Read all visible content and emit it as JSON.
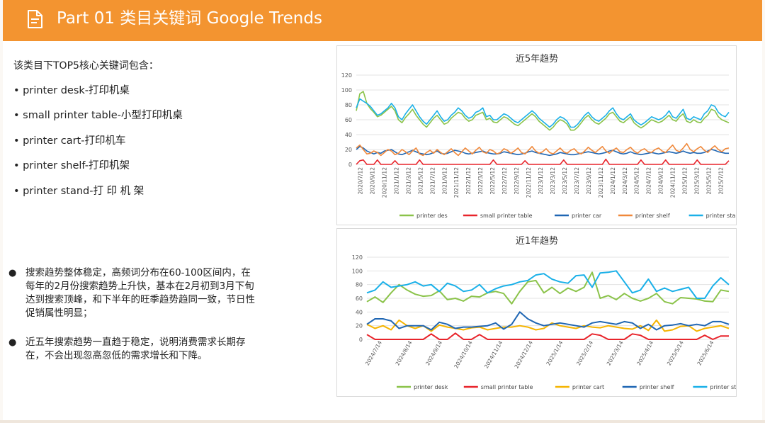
{
  "header": {
    "title": "Part 01 类目关键词 Google Trends",
    "icon": "document-icon",
    "color": "#f39430"
  },
  "left": {
    "intro": "该类目下TOP5核心关键词包含：",
    "keywords": [
      "• printer desk-打印机桌",
      "• small printer table-小型打印机桌",
      "• printer cart-打印机车",
      "• printer shelf-打印机架",
      "• printer stand-打 印 机 架"
    ],
    "notes": [
      "搜索趋势整体稳定，高频词分布在60-100区间内，在每年的2月份搜索趋势上升快，基本在2月初到3月下旬达到搜索顶峰，和下半年的旺季趋势趋同一致，节日性促销属性明显；",
      "近五年搜索趋势一直趋于稳定，说明消费需求长期存在，不会出现忽高忽低的需求增长和下降。"
    ]
  },
  "chart_data": [
    {
      "type": "line",
      "title": "近5年趋势",
      "xlabel": "",
      "ylabel": "",
      "ylim": [
        0,
        120
      ],
      "yticks": [
        0,
        20,
        40,
        60,
        80,
        100,
        120
      ],
      "grid": true,
      "legend_position": "bottom",
      "x_tick_labels": [
        "2020/7/12",
        "2020/9/12",
        "2020/11/12",
        "2021/1/12",
        "2021/3/12",
        "2021/5/12",
        "2021/7/12",
        "2021/9/12",
        "2021/11/12",
        "2022/1/12",
        "2022/3/12",
        "2022/5/12",
        "2022/7/12",
        "2022/9/12",
        "2022/11/12",
        "2023/1/12",
        "2023/3/12",
        "2023/5/12",
        "2023/7/12",
        "2023/9/12",
        "2023/11/12",
        "2024/1/12",
        "2024/3/12",
        "2024/5/12",
        "2024/7/12",
        "2024/9/12",
        "2024/11/12",
        "2025/1/12",
        "2025/3/12",
        "2025/5/12",
        "2025/7/12"
      ],
      "series": [
        {
          "name": "printer des",
          "color": "#8bc34a",
          "values": [
            72,
            95,
            98,
            82,
            75,
            70,
            64,
            66,
            70,
            74,
            78,
            72,
            60,
            56,
            63,
            68,
            74,
            66,
            60,
            54,
            50,
            56,
            62,
            66,
            60,
            54,
            56,
            62,
            66,
            70,
            68,
            62,
            58,
            60,
            66,
            68,
            70,
            60,
            62,
            57,
            56,
            60,
            64,
            62,
            58,
            54,
            52,
            56,
            60,
            64,
            68,
            64,
            58,
            54,
            50,
            46,
            50,
            56,
            60,
            58,
            54,
            46,
            46,
            50,
            56,
            62,
            66,
            60,
            56,
            54,
            58,
            62,
            68,
            70,
            64,
            58,
            56,
            60,
            64,
            56,
            52,
            49,
            52,
            56,
            60,
            58,
            56,
            58,
            62,
            66,
            60,
            58,
            64,
            68,
            58,
            56,
            60,
            57,
            56,
            62,
            66,
            74,
            72,
            64,
            60,
            58,
            56
          ]
        },
        {
          "name": "small printer table",
          "color": "#e8242b",
          "values": [
            0,
            5,
            6,
            0,
            0,
            0,
            6,
            0,
            0,
            0,
            0,
            5,
            0,
            0,
            0,
            0,
            0,
            0,
            6,
            0,
            0,
            0,
            0,
            0,
            0,
            0,
            0,
            0,
            0,
            0,
            0,
            0,
            0,
            0,
            0,
            0,
            0,
            0,
            0,
            6,
            0,
            0,
            0,
            0,
            0,
            0,
            0,
            0,
            5,
            0,
            0,
            0,
            0,
            0,
            0,
            0,
            0,
            0,
            0,
            6,
            0,
            0,
            0,
            0,
            0,
            0,
            0,
            0,
            0,
            0,
            0,
            7,
            0,
            0,
            0,
            0,
            0,
            0,
            0,
            0,
            0,
            6,
            0,
            0,
            0,
            0,
            0,
            0,
            6,
            0,
            0,
            0,
            0,
            0,
            0,
            0,
            0,
            6,
            0,
            0,
            0,
            0,
            0,
            0,
            0,
            0,
            5
          ]
        },
        {
          "name": "printer car",
          "color": "#1f66b3",
          "values": [
            20,
            24,
            22,
            18,
            16,
            14,
            16,
            15,
            18,
            19,
            20,
            17,
            14,
            13,
            15,
            17,
            19,
            17,
            15,
            14,
            13,
            14,
            16,
            18,
            15,
            14,
            15,
            17,
            19,
            18,
            17,
            15,
            14,
            15,
            16,
            17,
            18,
            16,
            15,
            14,
            14,
            15,
            17,
            16,
            15,
            14,
            13,
            14,
            15,
            17,
            18,
            16,
            15,
            14,
            13,
            12,
            13,
            14,
            16,
            15,
            14,
            13,
            13,
            14,
            15,
            16,
            17,
            16,
            15,
            14,
            15,
            16,
            18,
            19,
            17,
            15,
            14,
            15,
            17,
            15,
            14,
            13,
            14,
            15,
            16,
            15,
            14,
            15,
            16,
            17,
            16,
            15,
            16,
            18,
            16,
            15,
            16,
            15,
            15,
            16,
            18,
            20,
            19,
            17,
            16,
            15,
            15
          ]
        },
        {
          "name": "printer shelf",
          "color": "#f0883a",
          "values": [
            22,
            26,
            20,
            14,
            15,
            18,
            16,
            12,
            16,
            20,
            18,
            13,
            15,
            20,
            17,
            13,
            18,
            22,
            14,
            12,
            16,
            19,
            15,
            20,
            16,
            13,
            17,
            21,
            16,
            12,
            17,
            22,
            18,
            14,
            19,
            23,
            17,
            15,
            20,
            18,
            14,
            16,
            21,
            19,
            15,
            18,
            22,
            16,
            14,
            19,
            24,
            18,
            15,
            17,
            21,
            16,
            14,
            18,
            22,
            17,
            15,
            19,
            21,
            16,
            14,
            18,
            23,
            19,
            16,
            20,
            24,
            18,
            15,
            19,
            22,
            17,
            16,
            20,
            23,
            18,
            15,
            19,
            21,
            17,
            16,
            20,
            22,
            18,
            16,
            21,
            26,
            19,
            17,
            22,
            28,
            20,
            17,
            21,
            24,
            19,
            16,
            21,
            25,
            20,
            17,
            21,
            22
          ]
        },
        {
          "name": "printer stand",
          "color": "#1ab0e8",
          "values": [
            76,
            88,
            85,
            82,
            78,
            72,
            66,
            68,
            72,
            76,
            82,
            76,
            64,
            60,
            68,
            74,
            80,
            72,
            64,
            58,
            54,
            60,
            66,
            72,
            64,
            58,
            60,
            66,
            70,
            76,
            72,
            66,
            62,
            64,
            70,
            72,
            76,
            64,
            66,
            60,
            60,
            64,
            68,
            66,
            62,
            58,
            56,
            60,
            64,
            68,
            72,
            68,
            62,
            58,
            54,
            50,
            54,
            60,
            64,
            62,
            58,
            50,
            50,
            54,
            60,
            66,
            70,
            64,
            60,
            58,
            62,
            66,
            72,
            76,
            68,
            62,
            60,
            64,
            68,
            60,
            56,
            53,
            56,
            60,
            64,
            62,
            60,
            62,
            66,
            72,
            64,
            62,
            68,
            74,
            62,
            60,
            64,
            62,
            60,
            68,
            72,
            80,
            78,
            70,
            66,
            64,
            70
          ]
        }
      ]
    },
    {
      "type": "line",
      "title": "近1年趋势",
      "xlabel": "",
      "ylabel": "",
      "ylim": [
        0,
        120
      ],
      "yticks": [
        0,
        20,
        40,
        60,
        80,
        100,
        120
      ],
      "grid": true,
      "legend_position": "bottom",
      "x_tick_labels": [
        "2024/7/14",
        "2024/8/14",
        "2024/9/14",
        "2024/10/14",
        "2024/11/14",
        "2024/12/14",
        "2025/1/14",
        "2025/2/14",
        "2025/3/14",
        "2025/4/14",
        "2025/5/14",
        "2025/6/14"
      ],
      "series": [
        {
          "name": "printer desk",
          "color": "#8bc34a",
          "values": [
            55,
            62,
            54,
            68,
            80,
            72,
            66,
            63,
            64,
            71,
            58,
            60,
            56,
            63,
            62,
            68,
            70,
            67,
            52,
            70,
            84,
            86,
            68,
            76,
            67,
            75,
            70,
            76,
            98,
            60,
            64,
            58,
            67,
            60,
            56,
            60,
            67,
            55,
            52,
            61,
            60,
            59,
            56,
            55,
            72,
            70
          ]
        },
        {
          "name": "small printer table",
          "color": "#e8242b",
          "values": [
            7,
            0,
            0,
            0,
            0,
            0,
            0,
            0,
            8,
            0,
            0,
            9,
            0,
            0,
            7,
            0,
            0,
            0,
            0,
            0,
            0,
            0,
            0,
            0,
            0,
            0,
            0,
            0,
            8,
            6,
            0,
            0,
            0,
            8,
            6,
            0,
            0,
            0,
            0,
            0,
            0,
            0,
            6,
            0,
            5,
            5
          ]
        },
        {
          "name": "printer cart",
          "color": "#f5b400",
          "values": [
            22,
            16,
            20,
            14,
            28,
            20,
            16,
            20,
            12,
            21,
            18,
            16,
            14,
            17,
            18,
            14,
            16,
            18,
            18,
            20,
            18,
            14,
            16,
            24,
            20,
            18,
            16,
            20,
            18,
            17,
            20,
            18,
            16,
            15,
            20,
            13,
            28,
            12,
            14,
            19,
            20,
            12,
            16,
            18,
            20,
            16
          ]
        },
        {
          "name": "printer shelf",
          "color": "#1f66b3",
          "values": [
            22,
            30,
            30,
            27,
            16,
            20,
            20,
            20,
            14,
            25,
            22,
            16,
            18,
            18,
            19,
            20,
            24,
            15,
            22,
            40,
            30,
            24,
            20,
            22,
            24,
            22,
            20,
            18,
            24,
            26,
            24,
            22,
            26,
            24,
            16,
            22,
            14,
            20,
            21,
            23,
            20,
            22,
            20,
            26,
            26,
            22
          ]
        },
        {
          "name": "printer stand",
          "color": "#1ab0e8",
          "values": [
            68,
            72,
            84,
            76,
            78,
            80,
            84,
            78,
            80,
            70,
            82,
            78,
            70,
            72,
            80,
            68,
            74,
            78,
            80,
            84,
            86,
            94,
            96,
            88,
            84,
            82,
            93,
            94,
            76,
            97,
            98,
            100,
            84,
            68,
            72,
            88,
            70,
            75,
            70,
            73,
            76,
            60,
            60,
            78,
            90,
            80
          ]
        }
      ]
    }
  ]
}
